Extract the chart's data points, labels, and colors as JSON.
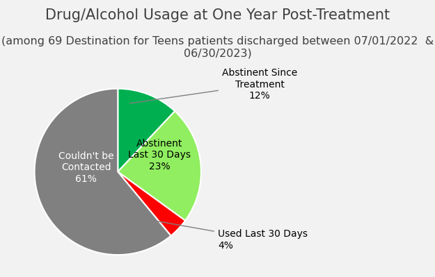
{
  "title": "Drug/Alcohol Usage at One Year Post-Treatment",
  "subtitle": "(among 69 Destination for Teens patients discharged between 07/01/2022  &\n06/30/2023)",
  "slices": [
    12,
    23,
    4,
    61
  ],
  "colors": [
    "#00b050",
    "#90ee60",
    "#ff0000",
    "#808080"
  ],
  "startangle": 90,
  "background_color": "#f2f2f2",
  "title_fontsize": 15,
  "subtitle_fontsize": 11.5,
  "label_fontsize": 10
}
